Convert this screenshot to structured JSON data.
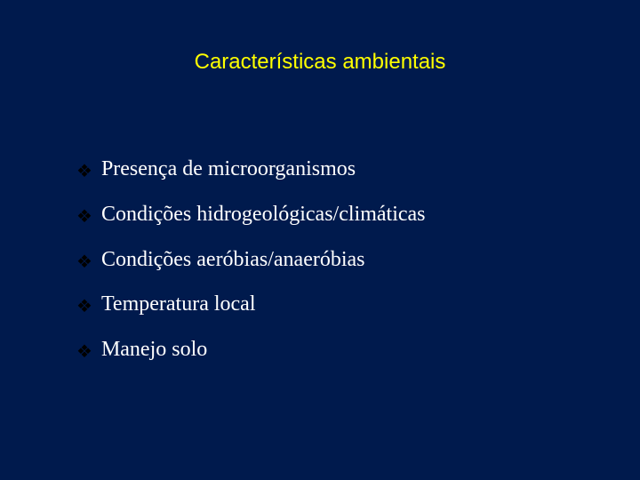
{
  "slide": {
    "background_color": "#001a4d",
    "title": "Características ambientais",
    "title_color": "#ffff00",
    "title_font": "Arial",
    "title_fontsize": 24,
    "bullet_icon_glyph": "❖",
    "bullet_icon_color": "#000000",
    "bullet_text_color": "#ffffff",
    "bullet_text_font": "Times New Roman",
    "bullet_text_fontsize": 24,
    "items": [
      "Presença de microorganismos",
      "Condições hidrogeológicas/climáticas",
      "Condições aeróbias/anaeróbias",
      "Temperatura local",
      "Manejo solo"
    ]
  }
}
